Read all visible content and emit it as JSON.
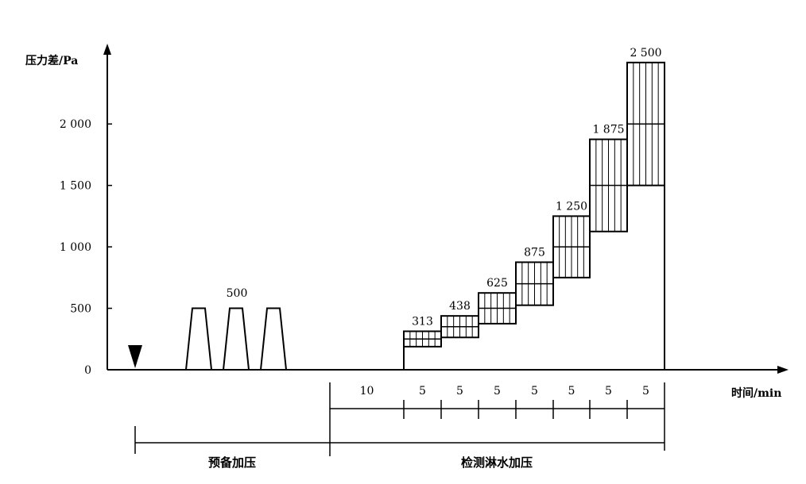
{
  "chart_data": {
    "type": "bar",
    "ylabel": "压力差/Pa",
    "xlabel": "时间/min",
    "ylim": [
      0,
      2500
    ],
    "y_ticks": [
      {
        "value": 0,
        "label": "0"
      },
      {
        "value": 500,
        "label": "500"
      },
      {
        "value": 1000,
        "label": "1 000"
      },
      {
        "value": 1500,
        "label": "1 500"
      },
      {
        "value": 2000,
        "label": "2 000"
      }
    ],
    "pre_pressure": {
      "label": "500",
      "pulses": [
        500,
        500,
        500
      ]
    },
    "steps": [
      {
        "label": "313",
        "value": 313,
        "min": 188
      },
      {
        "label": "438",
        "value": 438,
        "min": 263
      },
      {
        "label": "625",
        "value": 625,
        "min": 375
      },
      {
        "label": "875",
        "value": 875,
        "min": 525
      },
      {
        "label": "1 250",
        "value": 1250,
        "min": 750
      },
      {
        "label": "1 875",
        "value": 1875,
        "min": 1125
      },
      {
        "label": "2 500",
        "value": 2500,
        "min": 1500
      }
    ],
    "durations": [
      "10",
      "5",
      "5",
      "5",
      "5",
      "5",
      "5",
      "5"
    ],
    "phases": [
      "预备加压",
      "检测淋水加压"
    ]
  }
}
